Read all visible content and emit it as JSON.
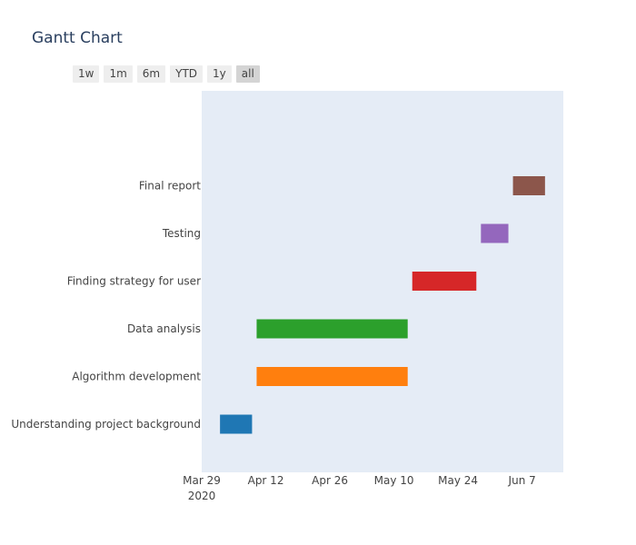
{
  "chart_data": {
    "type": "gantt",
    "title": "Gantt Chart",
    "range_selector": [
      {
        "label": "1w",
        "active": false
      },
      {
        "label": "1m",
        "active": false
      },
      {
        "label": "6m",
        "active": false
      },
      {
        "label": "YTD",
        "active": false
      },
      {
        "label": "1y",
        "active": false
      },
      {
        "label": "all",
        "active": true
      }
    ],
    "x_range": [
      "2020-03-29",
      "2020-06-16"
    ],
    "x_ticks": [
      {
        "date": "2020-03-29",
        "label": "Mar 29",
        "sublabel": "2020"
      },
      {
        "date": "2020-04-12",
        "label": "Apr 12",
        "sublabel": ""
      },
      {
        "date": "2020-04-26",
        "label": "Apr 26",
        "sublabel": ""
      },
      {
        "date": "2020-05-10",
        "label": "May 10",
        "sublabel": ""
      },
      {
        "date": "2020-05-24",
        "label": "May 24",
        "sublabel": ""
      },
      {
        "date": "2020-06-07",
        "label": "Jun 7",
        "sublabel": ""
      }
    ],
    "tasks": [
      {
        "name": "Understanding project background",
        "start": "2020-04-02",
        "end": "2020-04-09",
        "color": "#1f77b4"
      },
      {
        "name": "Algorithm development",
        "start": "2020-04-10",
        "end": "2020-05-13",
        "color": "#ff7f0e"
      },
      {
        "name": "Data analysis",
        "start": "2020-04-10",
        "end": "2020-05-13",
        "color": "#2ca02c"
      },
      {
        "name": "Finding strategy for user",
        "start": "2020-05-14",
        "end": "2020-05-28",
        "color": "#d62728"
      },
      {
        "name": "Testing",
        "start": "2020-05-29",
        "end": "2020-06-04",
        "color": "#9467bd"
      },
      {
        "name": "Final report",
        "start": "2020-06-05",
        "end": "2020-06-12",
        "color": "#8c564b"
      }
    ],
    "plot_background": "#e5ecf6"
  }
}
